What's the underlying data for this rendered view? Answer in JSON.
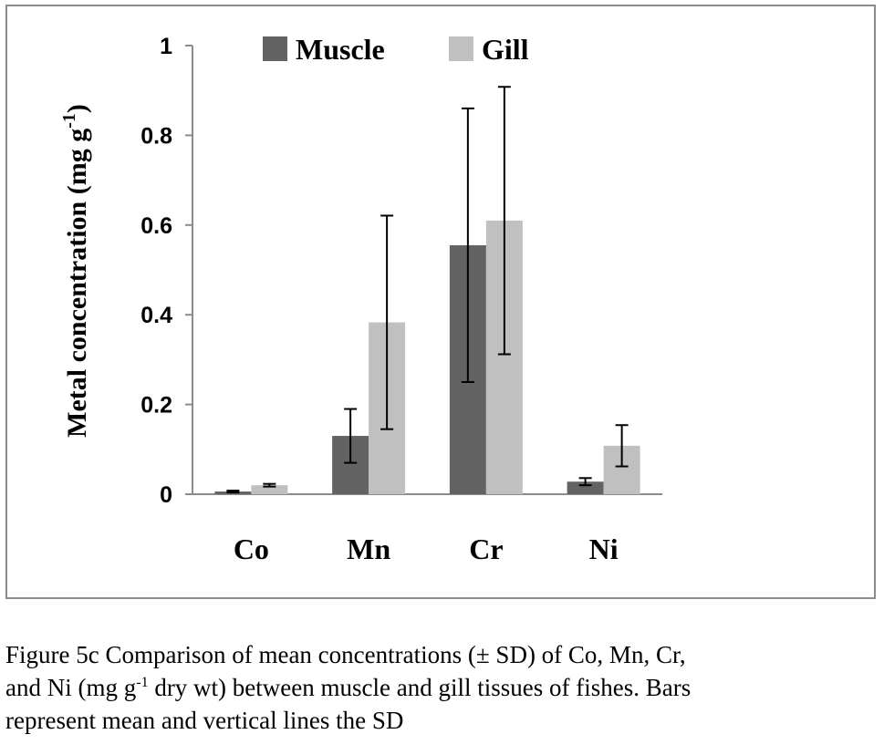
{
  "chart_data": {
    "type": "bar",
    "categories": [
      "Co",
      "Mn",
      "Cr",
      "Ni"
    ],
    "series": [
      {
        "name": "Muscle",
        "color": "#636363",
        "values": [
          0.006,
          0.13,
          0.555,
          0.028
        ],
        "sd": [
          0.002,
          0.06,
          0.305,
          0.008
        ]
      },
      {
        "name": "Gill",
        "color": "#c0c0c0",
        "values": [
          0.02,
          0.383,
          0.61,
          0.108
        ],
        "sd": [
          0.003,
          0.238,
          0.298,
          0.046
        ]
      }
    ],
    "ylabel_main": "Metal concentration (mg g",
    "ylabel_sup": "-1",
    "ylabel_close": ")",
    "ylim": [
      0,
      1
    ],
    "yticks": [
      "0",
      "0.2",
      "0.4",
      "0.6",
      "0.8",
      "1"
    ],
    "ytick_values": [
      0,
      0.2,
      0.4,
      0.6,
      0.8,
      1
    ],
    "legend_position": "top",
    "grid": false
  },
  "caption": {
    "line1": "Figure 5c Comparison of mean concentrations (± SD) of Co, Mn, Cr,",
    "line2_pre": "and Ni (mg g",
    "line2_sup": "-1",
    "line2_post": " dry wt) between muscle and gill tissues of fishes. Bars",
    "line3": "represent mean and vertical lines the SD"
  }
}
